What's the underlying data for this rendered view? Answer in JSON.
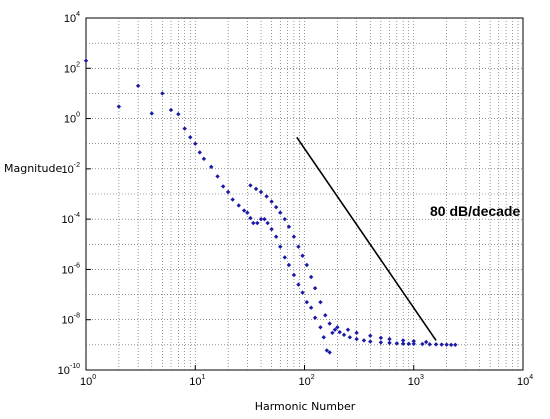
{
  "chart_data": {
    "type": "scatter",
    "xlabel": "Harmonic Number",
    "ylabel": "Magnitude",
    "xscale": "log",
    "yscale": "log",
    "xlim": [
      1,
      10000
    ],
    "ylim": [
      1e-10,
      10000
    ],
    "grid": true,
    "x_ticks": [
      {
        "base": "10",
        "exp": "0",
        "value": 1
      },
      {
        "base": "10",
        "exp": "1",
        "value": 10
      },
      {
        "base": "10",
        "exp": "2",
        "value": 100
      },
      {
        "base": "10",
        "exp": "3",
        "value": 1000
      },
      {
        "base": "10",
        "exp": "4",
        "value": 10000
      }
    ],
    "y_ticks": [
      {
        "base": "10",
        "exp": "4",
        "value": 10000
      },
      {
        "base": "10",
        "exp": "2",
        "value": 100
      },
      {
        "base": "10",
        "exp": "0",
        "value": 1
      },
      {
        "base": "10",
        "exp": "-2",
        "value": 0.01
      },
      {
        "base": "10",
        "exp": "-4",
        "value": 0.0001
      },
      {
        "base": "10",
        "exp": "-6",
        "value": 1e-06
      },
      {
        "base": "10",
        "exp": "-8",
        "value": 1e-08
      },
      {
        "base": "10",
        "exp": "-10",
        "value": 1e-10
      }
    ],
    "series": [
      {
        "color": "#1a1aa6",
        "marker": "diamond",
        "points": [
          [
            1,
            200
          ],
          [
            2,
            3
          ],
          [
            3,
            20
          ],
          [
            4,
            1.6
          ],
          [
            5,
            10
          ],
          [
            6,
            2.2
          ],
          [
            7,
            1.5
          ],
          [
            8,
            0.4
          ],
          [
            9,
            0.18
          ],
          [
            10,
            0.1
          ],
          [
            11,
            0.045
          ],
          [
            12,
            0.025
          ],
          [
            14,
            0.012
          ],
          [
            16,
            0.005
          ],
          [
            18,
            0.002
          ],
          [
            20,
            0.0012
          ],
          [
            22,
            0.0006
          ],
          [
            25,
            0.00035
          ],
          [
            28,
            0.00022
          ],
          [
            30,
            0.00018
          ],
          [
            32,
            0.00011
          ],
          [
            34,
            7e-05
          ],
          [
            37,
            7e-05
          ],
          [
            40,
            0.0001
          ],
          [
            43,
            0.0001
          ],
          [
            46,
            7e-05
          ],
          [
            50,
            4e-05
          ],
          [
            55,
            2e-05
          ],
          [
            60,
            8e-06
          ],
          [
            66,
            3e-06
          ],
          [
            72,
            1.5e-06
          ],
          [
            80,
            6e-07
          ],
          [
            88,
            2.5e-07
          ],
          [
            96,
            1.2e-07
          ],
          [
            105,
            5e-08
          ],
          [
            115,
            3e-08
          ],
          [
            125,
            1.2e-08
          ],
          [
            140,
            5e-09
          ],
          [
            150,
            2e-09
          ],
          [
            160,
            6e-10
          ],
          [
            170,
            5e-10
          ],
          [
            180,
            3e-09
          ],
          [
            190,
            4e-09
          ],
          [
            210,
            3.2e-09
          ],
          [
            230,
            2.5e-09
          ],
          [
            260,
            2e-09
          ],
          [
            300,
            1.7e-09
          ],
          [
            350,
            1.5e-09
          ],
          [
            400,
            1.35e-09
          ],
          [
            500,
            1.25e-09
          ],
          [
            600,
            1.2e-09
          ],
          [
            700,
            1.15e-09
          ],
          [
            800,
            1.12e-09
          ],
          [
            900,
            1.1e-09
          ],
          [
            1000,
            1.1e-09
          ],
          [
            1200,
            1.08e-09
          ],
          [
            1400,
            1.05e-09
          ],
          [
            1600,
            1.05e-09
          ],
          [
            1800,
            1.03e-09
          ],
          [
            2000,
            1.02e-09
          ],
          [
            2200,
            1e-09
          ],
          [
            2400,
            1e-09
          ],
          [
            32,
            0.0022
          ],
          [
            36,
            0.0016
          ],
          [
            40,
            0.0012
          ],
          [
            45,
            0.0008
          ],
          [
            50,
            0.0005
          ],
          [
            55,
            0.0003
          ],
          [
            60,
            0.00018
          ],
          [
            66,
            0.0001
          ],
          [
            72,
            5e-05
          ],
          [
            80,
            2e-05
          ],
          [
            88,
            8e-06
          ],
          [
            96,
            3.5e-06
          ],
          [
            105,
            1.5e-06
          ],
          [
            115,
            5e-07
          ],
          [
            125,
            1.8e-07
          ],
          [
            140,
            5e-08
          ],
          [
            155,
            1.5e-08
          ],
          [
            170,
            7e-09
          ],
          [
            200,
            5e-09
          ],
          [
            250,
            4e-09
          ],
          [
            300,
            3e-09
          ],
          [
            400,
            2.3e-09
          ],
          [
            500,
            1.9e-09
          ],
          [
            600,
            1.7e-09
          ],
          [
            800,
            1.5e-09
          ],
          [
            1000,
            1.4e-09
          ],
          [
            1300,
            1.3e-09
          ]
        ]
      }
    ],
    "reference_line": {
      "label": "80 dB/decade",
      "from": [
        85,
        0.18
      ],
      "to": [
        1600,
        1.5e-09
      ],
      "color": "#000000"
    }
  }
}
